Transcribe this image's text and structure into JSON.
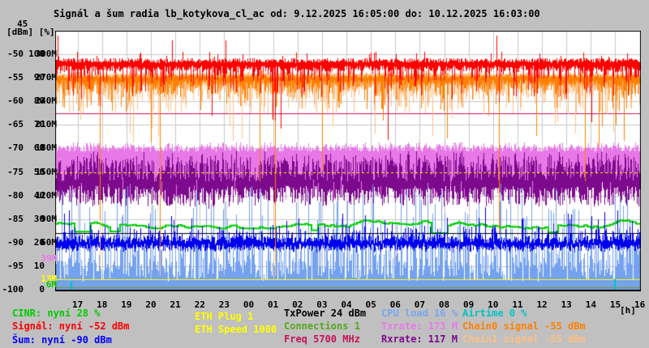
{
  "page": {
    "background": "#c0c0c0",
    "title": "Signál a šum radia lb_kotykova_cl_ac od: 9.12.2025 16:05:00 do: 10.12.2025 16:03:00"
  },
  "axis": {
    "top_value": "45",
    "units_label": "[dBm] [%]",
    "hours_unit": "[h]",
    "rows": [
      {
        "dbm": "-50",
        "pct": "100",
        "rate": "300M"
      },
      {
        "dbm": "-55",
        "pct": "90",
        "rate": "270M"
      },
      {
        "dbm": "-60",
        "pct": "80",
        "rate": "240M"
      },
      {
        "dbm": "-65",
        "pct": "70",
        "rate": "210M"
      },
      {
        "dbm": "-70",
        "pct": "60",
        "rate": "180M"
      },
      {
        "dbm": "-75",
        "pct": "50",
        "rate": "150M"
      },
      {
        "dbm": "-80",
        "pct": "40",
        "rate": "120M"
      },
      {
        "dbm": "-85",
        "pct": "30",
        "rate": "90M"
      },
      {
        "dbm": "-90",
        "pct": "20",
        "rate": "60M"
      },
      {
        "dbm": "-95",
        "pct": "10",
        "rate": ""
      },
      {
        "dbm": "-100",
        "pct": "0",
        "rate": ""
      }
    ],
    "extra_rate_ticks": [
      {
        "label": "39M",
        "value_m": 39,
        "color": "#e878e8"
      },
      {
        "label": "13M",
        "value_m": 13,
        "color": "#ffff00"
      },
      {
        "label": "6M",
        "value_m": 6,
        "color": "#00cc00"
      }
    ],
    "hour_ticks": [
      "17",
      "18",
      "19",
      "20",
      "21",
      "22",
      "23",
      "00",
      "01",
      "02",
      "03",
      "04",
      "05",
      "06",
      "07",
      "08",
      "09",
      "10",
      "11",
      "12",
      "13",
      "14",
      "15",
      "16"
    ]
  },
  "legend": {
    "cinr": {
      "label": "CINR: nyní 28 %",
      "color": "#00cc00"
    },
    "signal": {
      "label": "Signál: nyní -52 dBm",
      "color": "#ff0000"
    },
    "noise": {
      "label": "Šum: nyní -90 dBm",
      "color": "#0000ff"
    },
    "eth_plug": {
      "label": "ETH Plug 1",
      "color": "#ffff00"
    },
    "eth_speed": {
      "label": "ETH Speed 1000",
      "color": "#ffff00"
    },
    "txpower": {
      "label": "TxPower 24 dBm",
      "color": "#000000"
    },
    "connections": {
      "label": "Connections 1",
      "color": "#55a81e"
    },
    "freq": {
      "label": "Freq 5700 MHz",
      "color": "#c81257"
    },
    "cpu": {
      "label": "CPU load 16 %",
      "color": "#79a7f0"
    },
    "txrate": {
      "label": "Txrate: 173 M",
      "color": "#e878e8"
    },
    "rxrate": {
      "label": "Rxrate: 117 M",
      "color": "#7d0a8c"
    },
    "airtime": {
      "label": "Airtime 0 %",
      "color": "#00c3c3"
    },
    "chain0": {
      "label": "Chain0 signal -55 dBm",
      "color": "#ff8000"
    },
    "chain1": {
      "label": "Chain1 signal -55 dBm",
      "color": "#ffbf85"
    }
  },
  "chart_data": {
    "type": "line",
    "title": "Signál a šum radia lb_kotykova_cl_ac",
    "time_from": "9.12.2025 16:05:00",
    "time_to": "10.12.2025 16:03:00",
    "x_unit": "h",
    "x_ticks": [
      "17",
      "18",
      "19",
      "20",
      "21",
      "22",
      "23",
      "00",
      "01",
      "02",
      "03",
      "04",
      "05",
      "06",
      "07",
      "08",
      "09",
      "10",
      "11",
      "12",
      "13",
      "14",
      "15",
      "16"
    ],
    "grid": true,
    "y_axes": [
      {
        "unit": "dBm",
        "min": -100,
        "max": -45
      },
      {
        "unit": "%",
        "min": 0,
        "max": 110
      },
      {
        "unit": "Mbit/s",
        "min": 0,
        "max": 330
      }
    ],
    "series": [
      {
        "id": "signal",
        "name": "Signál",
        "unit": "dBm",
        "color": "#ff0000",
        "current": -52,
        "band": [
          -53.5,
          -51
        ],
        "spikes_down": [
          {
            "t": 0.076,
            "v": -61
          },
          {
            "t": 0.273,
            "v": -58
          },
          {
            "t": 0.375,
            "v": -64
          },
          {
            "t": 0.757,
            "v": -60
          }
        ],
        "spikes_up": [
          {
            "t": 0.004,
            "v": -46
          },
          {
            "t": 0.199,
            "v": -47
          },
          {
            "t": 0.291,
            "v": -47
          },
          {
            "t": 0.754,
            "v": -46
          }
        ]
      },
      {
        "id": "chain0",
        "name": "Chain0 signal",
        "unit": "dBm",
        "color": "#ff8000",
        "current": -55,
        "band": [
          -57.5,
          -54
        ],
        "spikes_down": [
          {
            "t": 0.076,
            "v": -85
          },
          {
            "t": 0.179,
            "v": -91
          },
          {
            "t": 0.349,
            "v": -77
          },
          {
            "t": 0.375,
            "v": -92
          },
          {
            "t": 0.456,
            "v": -75
          },
          {
            "t": 0.757,
            "v": -88
          },
          {
            "t": 0.904,
            "v": -77
          }
        ]
      },
      {
        "id": "chain1",
        "name": "Chain1 signal",
        "unit": "dBm",
        "color": "#ffbf85",
        "current": -55,
        "band": [
          -58.5,
          -53.8
        ],
        "spikes_down": [
          {
            "t": 0.076,
            "v": -95
          },
          {
            "t": 0.179,
            "v": -97
          },
          {
            "t": 0.375,
            "v": -97
          }
        ]
      },
      {
        "id": "noise",
        "name": "Šum",
        "unit": "dBm",
        "color": "#0000ee",
        "current": -90,
        "band": [
          -91,
          -88.5
        ],
        "spike_up_limit": -84
      },
      {
        "id": "cinr",
        "name": "CINR",
        "unit": "%",
        "color": "#00cc00",
        "current": 28,
        "band": [
          24,
          30
        ]
      },
      {
        "id": "cpu",
        "name": "CPU load",
        "unit": "%",
        "color": "#74a2ef",
        "current": 16,
        "band": [
          3,
          45
        ]
      },
      {
        "id": "airtime",
        "name": "Airtime",
        "unit": "%",
        "color": "#00c3c3",
        "current": 0,
        "spikes_up": [
          {
            "t": 0.027,
            "v": 3.5
          },
          {
            "t": 0.954,
            "v": 4.5
          }
        ]
      },
      {
        "id": "txrate",
        "name": "Txrate",
        "unit": "Mbit/s",
        "color": "#e878e8",
        "current": 173,
        "band": [
          140,
          184
        ]
      },
      {
        "id": "rxrate",
        "name": "Rxrate",
        "unit": "Mbit/s",
        "color": "#7d0a8c",
        "current": 117,
        "band": [
          106,
          170
        ]
      },
      {
        "id": "txpower",
        "name": "TxPower",
        "unit": "dBm",
        "color": "#000000",
        "current": 24,
        "constant": true,
        "plotted_axis": "%",
        "plotted_value": 24
      },
      {
        "id": "connections",
        "name": "Connections",
        "unit": "",
        "color": "#7c9a00",
        "current": 1,
        "constant": true,
        "plotted_axis": "%",
        "plotted_value": 1
      },
      {
        "id": "freq",
        "name": "Freq",
        "unit": "MHz",
        "color": "#c81257",
        "current": 5700,
        "constant": true,
        "plotted_axis": "%",
        "plotted_value": 75
      },
      {
        "id": "eth",
        "name": "ETH Speed",
        "unit": "Mbit/s",
        "color": "#ffff00",
        "current": 1000,
        "guide_lines_m": [
          150,
          13
        ]
      }
    ]
  }
}
